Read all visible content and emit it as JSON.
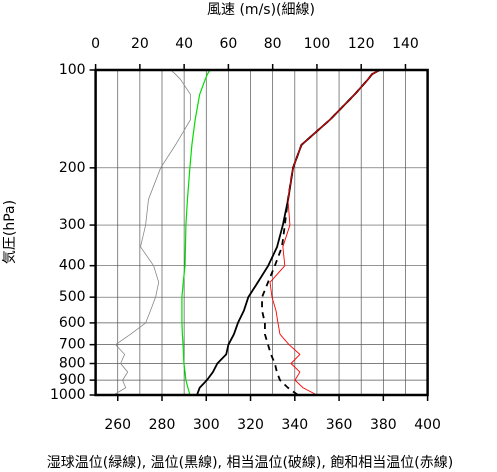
{
  "chart_data": {
    "type": "line",
    "title": "風速 (m/s)(細線)",
    "ylabel": "気圧(hPa)",
    "xlabel": "湿球温位(緑線), 温位(黒線), 相当温位(破線), 飽和相当温位(赤線)",
    "y": [
      1000,
      950,
      900,
      850,
      800,
      750,
      700,
      650,
      600,
      550,
      500,
      450,
      400,
      350,
      300,
      250,
      200,
      170,
      142,
      119,
      107,
      103,
      100
    ],
    "ylim": [
      100,
      1000
    ],
    "yscale": "log",
    "yinverted": true,
    "yticks": [
      100,
      200,
      300,
      400,
      500,
      600,
      700,
      800,
      900,
      1000
    ],
    "xlim": [
      250,
      400
    ],
    "xticks": [
      260,
      280,
      300,
      320,
      340,
      360,
      380,
      400
    ],
    "x2lim": [
      0,
      150
    ],
    "x2ticks": [
      0,
      20,
      40,
      60,
      80,
      100,
      120,
      140
    ],
    "xgrid": [
      260,
      270,
      280,
      290,
      300,
      310,
      320,
      330,
      340,
      350,
      360,
      370,
      380,
      390
    ],
    "grid": true,
    "series": [
      {
        "color": "#888888",
        "width": 0.8,
        "axis": "x2",
        "values": [
          8.1,
          13.6,
          12.2,
          14.5,
          11.3,
          13.1,
          9,
          15.8,
          22.6,
          24.8,
          27.1,
          28.5,
          26.2,
          20.3,
          22.6,
          23.9,
          29.4,
          36.1,
          42.9,
          42.9,
          38.4,
          36.1,
          33.9
        ]
      },
      {
        "color": "#00dd00",
        "width": 1.2,
        "values": [
          292.6,
          291.7,
          290.8,
          290.4,
          289.9,
          289.7,
          289.5,
          289.2,
          289,
          289,
          289,
          289.6,
          290.4,
          290.6,
          290.8,
          291.5,
          292.6,
          293.5,
          295,
          297,
          299.5,
          300.5,
          301.7
        ]
      },
      {
        "color": "#000000",
        "width": 1.8,
        "dash": true,
        "values": [
          341.4,
          336.9,
          333.3,
          331.9,
          331,
          329.2,
          327.9,
          326.5,
          326.5,
          325.2,
          325.2,
          327.9,
          331,
          334.2,
          335.5,
          336.9,
          339.2,
          343,
          356,
          367,
          373,
          374.9,
          378.4
        ]
      },
      {
        "color": "#000000",
        "width": 1.8,
        "values": [
          295.8,
          297,
          300.3,
          303,
          305,
          309,
          310,
          312.5,
          314.3,
          317,
          319,
          323.3,
          328,
          332,
          334.6,
          337,
          339.2,
          343,
          356,
          367,
          373,
          374.9,
          378.4
        ]
      },
      {
        "color": "#ff0000",
        "width": 0.9,
        "values": [
          350,
          343.7,
          340.1,
          342.3,
          338.3,
          342.3,
          337.4,
          333.3,
          332.4,
          331.5,
          329.7,
          328.8,
          335.5,
          334.6,
          337.8,
          336.9,
          339.2,
          343,
          356,
          367,
          373,
          374.9,
          378.4
        ]
      }
    ]
  }
}
